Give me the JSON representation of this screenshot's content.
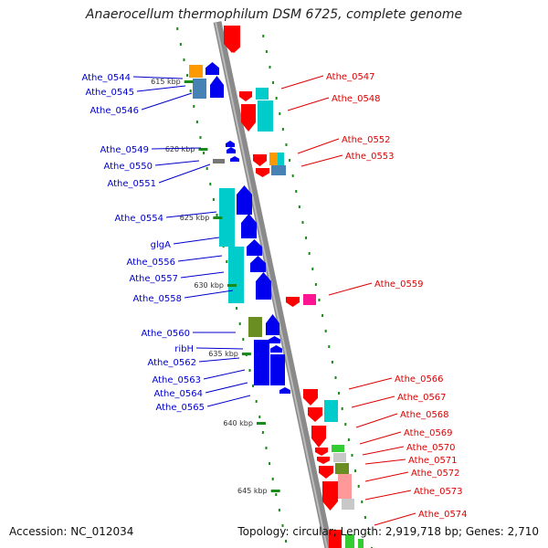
{
  "title": "Anaerocellum thermophilum DSM 6725, complete genome",
  "footer": {
    "accession": "Accession: NC_012034",
    "summary": "Topology: circular; Length: 2,919,718 bp; Genes: 2,710"
  },
  "colors": {
    "backbone": "#8a8a8a",
    "minus_strand_label": "#0000cc",
    "plus_strand_label": "#dd0000",
    "tick": "#1a8a1a",
    "gene_blue": "#0000ee",
    "gene_red": "#ff0000",
    "cog_cyan": "#00cccc",
    "cog_orange": "#ff9900",
    "cog_steel": "#4682b4",
    "cog_olive": "#6b8e23",
    "cog_magenta": "#ff1493",
    "cog_pink": "#ff9999",
    "cog_green": "#33cc33",
    "cog_gray": "#c8c8c8"
  },
  "kbp_ticks": [
    "615 kbp",
    "620 kbp",
    "625 kbp",
    "630 kbp",
    "635 kbp",
    "640 kbp",
    "645 kbp"
  ],
  "left_labels": [
    "Athe_0544",
    "Athe_0545",
    "Athe_0546",
    "Athe_0549",
    "Athe_0550",
    "Athe_0551",
    "Athe_0554",
    "glgA",
    "Athe_0556",
    "Athe_0557",
    "Athe_0558",
    "Athe_0560",
    "ribH",
    "Athe_0562",
    "Athe_0563",
    "Athe_0564",
    "Athe_0565"
  ],
  "right_labels": [
    "Athe_0547",
    "Athe_0548",
    "Athe_0552",
    "Athe_0553",
    "Athe_0559",
    "Athe_0566",
    "Athe_0567",
    "Athe_0568",
    "Athe_0569",
    "Athe_0570",
    "Athe_0571",
    "Athe_0572",
    "Athe_0573",
    "Athe_0574"
  ]
}
